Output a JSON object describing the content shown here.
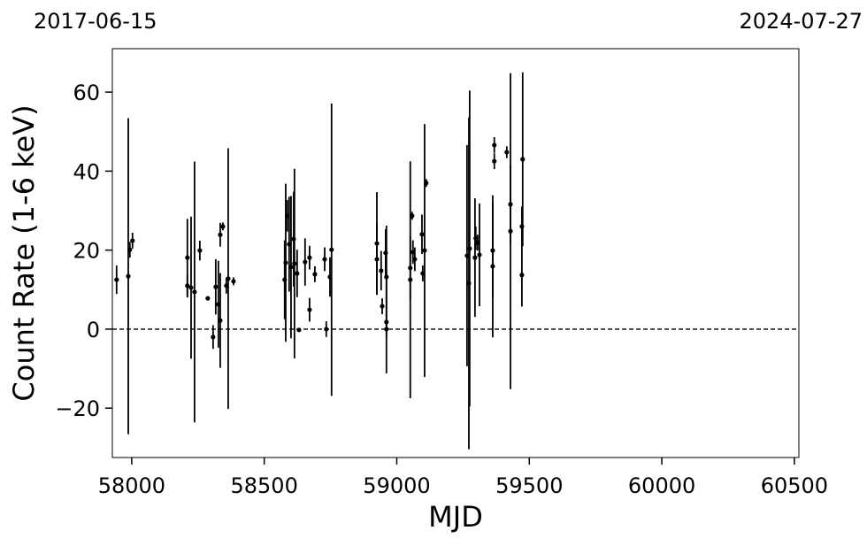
{
  "chart_data": {
    "type": "errorbar",
    "top_labels": [
      "2017-06-15",
      "2024-07-27"
    ],
    "xlabel": "MJD",
    "ylabel": "Count Rate (1-6 keV)",
    "xlim": [
      57927,
      60517
    ],
    "ylim": [
      -32.5,
      71
    ],
    "xticks": [
      58000,
      58500,
      59000,
      59500,
      60000,
      60500
    ],
    "yticks": [
      {
        "value": -20,
        "label": "−20"
      },
      0,
      20,
      40,
      60
    ],
    "reference_line": 0,
    "series": [
      {
        "color": "#000000",
        "x": [
          57943,
          57987,
          57993,
          58003,
          58210,
          58210,
          58224,
          58237,
          58257,
          58287,
          58307,
          58317,
          58327,
          58334,
          58334,
          58344,
          58357,
          58364,
          58384,
          58577,
          58581,
          58587,
          58594,
          58601,
          58611,
          58614,
          58624,
          58631,
          58654,
          58671,
          58671,
          58691,
          58728,
          58734,
          58748,
          58754,
          58925,
          58925,
          58941,
          58945,
          58958,
          58961,
          58961,
          58961,
          59051,
          59051,
          59058,
          59061,
          59068,
          59095,
          59098,
          59105,
          59111,
          59265,
          59272,
          59275,
          59295,
          59298,
          59305,
          59312,
          59362,
          59362,
          59368,
          59368,
          59415,
          59429,
          59429,
          59472,
          59472,
          59475
        ],
        "values": [
          12.5,
          13.4,
          20.1,
          22.4,
          18.1,
          11,
          10.5,
          9.4,
          19.9,
          7.8,
          -2,
          10.7,
          6.3,
          23.9,
          2.2,
          26,
          11,
          12.8,
          12.1,
          12.5,
          16.8,
          28.7,
          21.5,
          15.7,
          22.8,
          16.6,
          14.1,
          -0.2,
          17,
          18.1,
          4.9,
          13.9,
          17.7,
          0,
          13.2,
          20.1,
          21.7,
          17.7,
          14.8,
          5.8,
          19.3,
          13.2,
          1.8,
          0,
          15.5,
          12.5,
          28.7,
          19.5,
          17.7,
          24,
          14.1,
          19.9,
          37,
          18.6,
          11.6,
          20.4,
          18.1,
          23,
          21.9,
          18.8,
          15.9,
          19.9,
          42.5,
          46.6,
          44.8,
          24.8,
          31.6,
          26,
          13.7,
          43
        ],
        "errors": [
          3.6,
          40,
          2,
          2,
          9.8,
          3,
          18,
          33,
          2.5,
          0.5,
          3,
          7,
          11,
          3,
          12,
          1,
          2,
          33,
          1,
          10,
          20,
          4,
          12,
          18,
          12,
          24,
          6,
          0.5,
          6,
          3,
          3,
          2,
          3,
          2,
          5,
          37,
          13,
          9,
          5,
          2,
          6,
          13,
          13,
          2,
          8,
          30,
          1,
          3,
          3,
          5,
          2,
          32,
          1,
          28,
          42,
          40,
          15,
          3,
          2,
          13,
          18,
          12,
          2,
          2,
          1.5,
          40,
          10,
          5,
          8,
          22
        ]
      }
    ]
  }
}
